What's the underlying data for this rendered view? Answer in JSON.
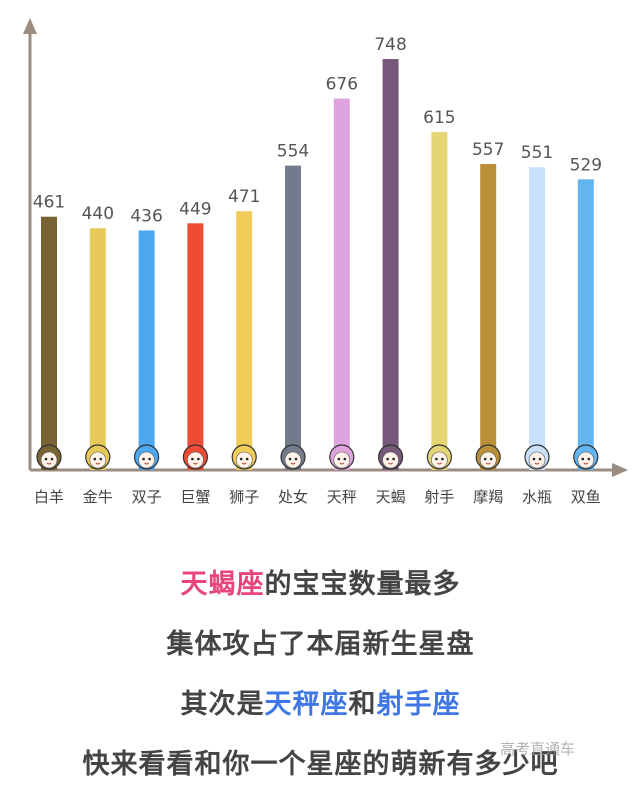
{
  "chart_data": {
    "type": "bar",
    "categories": [
      "白羊",
      "金牛",
      "双子",
      "巨蟹",
      "狮子",
      "处女",
      "天秤",
      "天蝎",
      "射手",
      "摩羯",
      "水瓶",
      "双鱼"
    ],
    "values": [
      461,
      440,
      436,
      449,
      471,
      554,
      676,
      748,
      615,
      557,
      551,
      529
    ],
    "colors": [
      "#7a6333",
      "#e7c95a",
      "#4ea8f0",
      "#ef4c36",
      "#f0cd58",
      "#737a8b",
      "#dfa4df",
      "#76597a",
      "#e6d574",
      "#b98f3a",
      "#c9e0fa",
      "#63b5f0"
    ],
    "ylim": [
      0,
      748
    ],
    "axis_color": "#9c8c80",
    "grid": false
  },
  "captions": {
    "line1": {
      "highlight": "天蝎座",
      "rest": "的宝宝数量最多"
    },
    "line2": "集体攻占了本届新生星盘",
    "line3": {
      "prefix": "其次是",
      "hl1": "天秤座",
      "mid": "和",
      "hl2": "射手座"
    },
    "line4": "快来看看和你一个星座的萌新有多少吧"
  },
  "watermark": "高考直通车"
}
